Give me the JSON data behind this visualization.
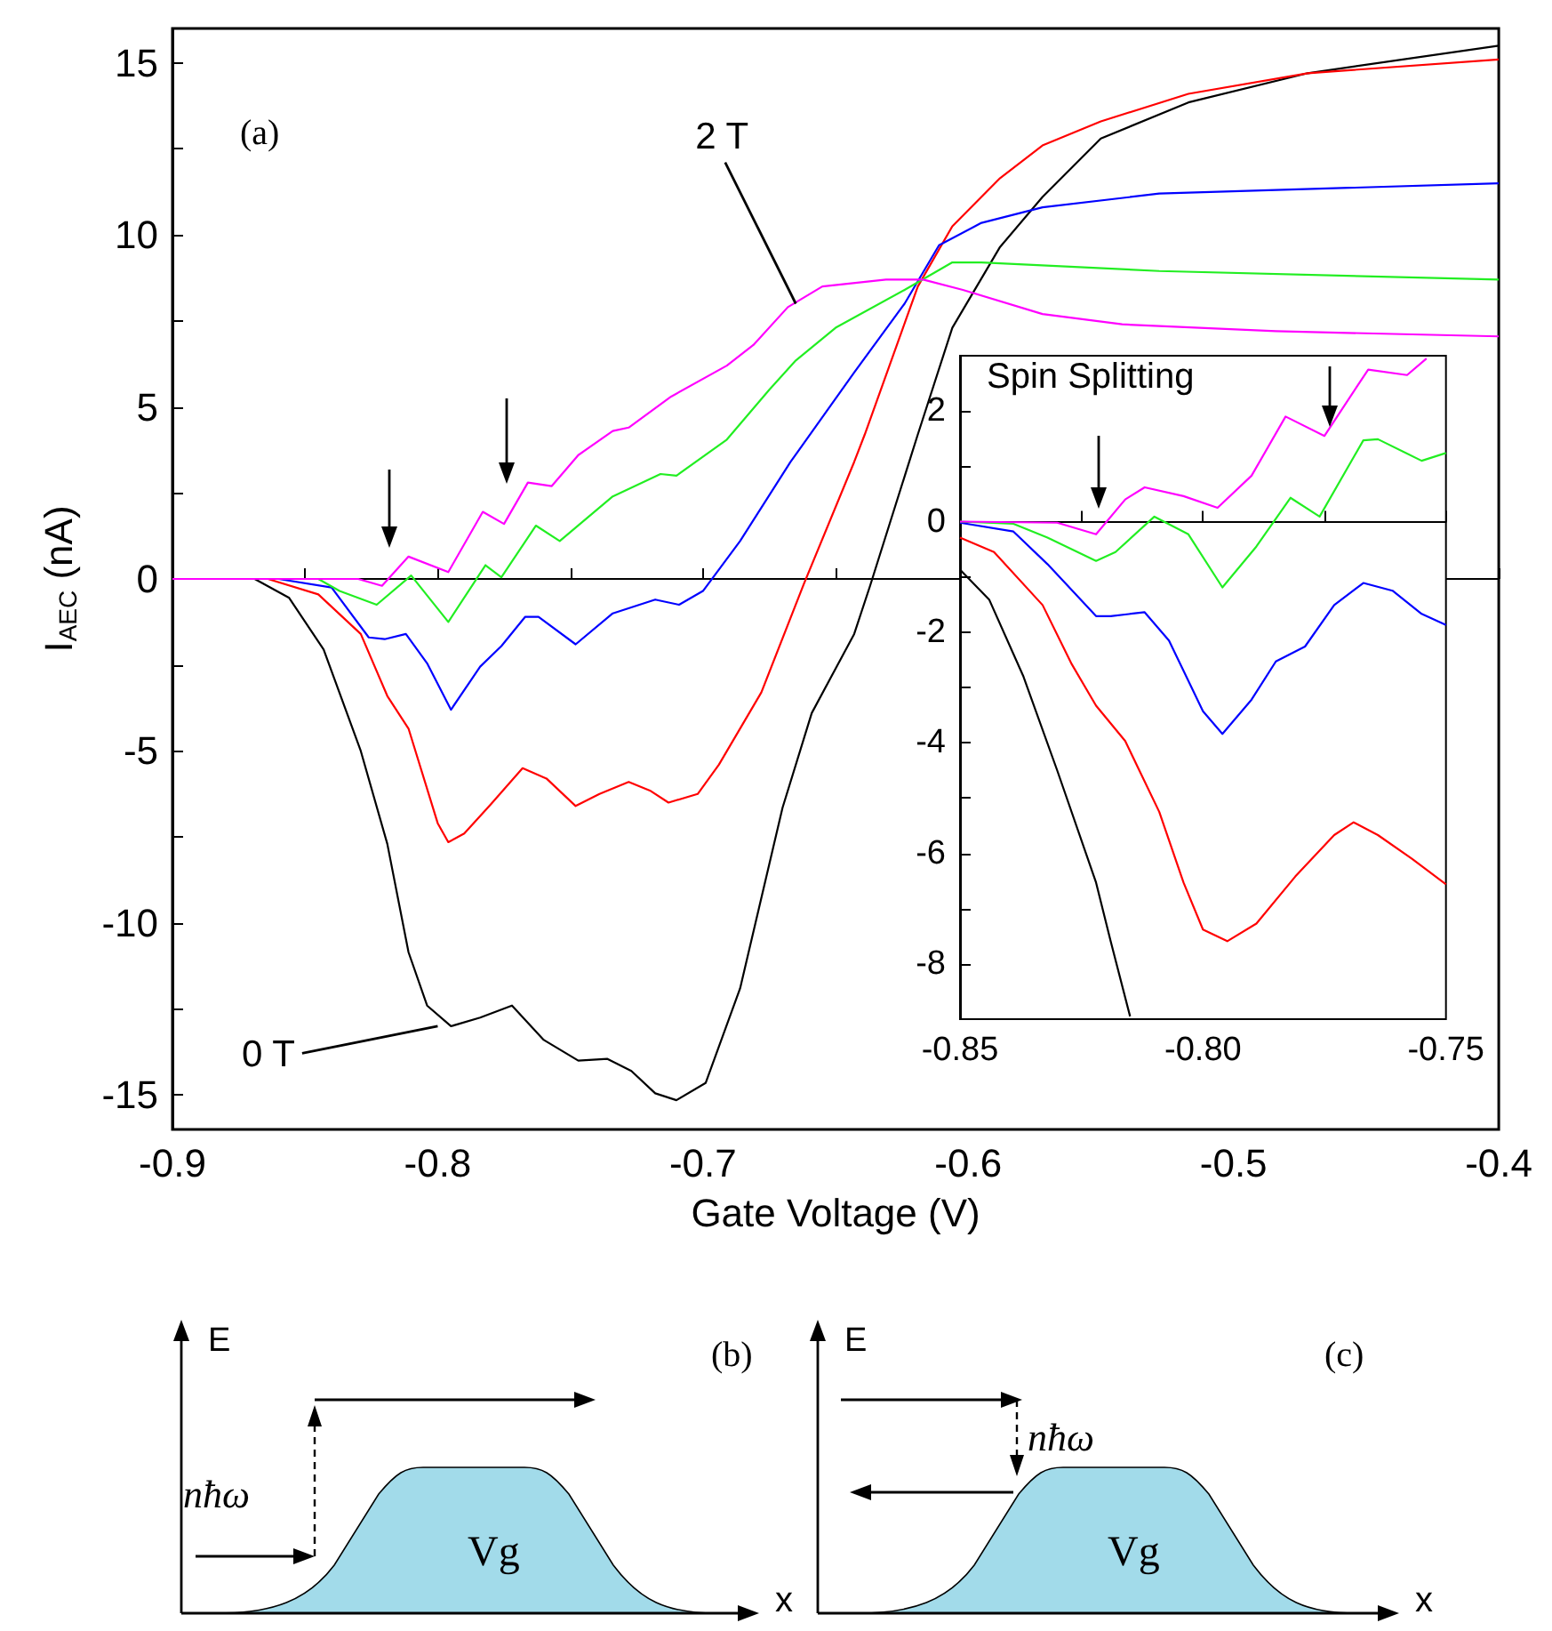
{
  "chart_data": [
    {
      "type": "line",
      "xlabel": "Gate Voltage (V)",
      "ylabel": "I$_{AEC}$ (nA)",
      "xlim": [
        -0.9,
        -0.4
      ],
      "ylim": [
        -16,
        16
      ],
      "xticks": [
        -0.9,
        {
          "value": -0.85,
          "label": null
        },
        -0.8,
        {
          "value": -0.75,
          "label": null
        },
        -0.7,
        {
          "value": -0.65,
          "label": null
        },
        -0.6,
        {
          "value": -0.55,
          "label": null
        },
        -0.5,
        {
          "value": -0.45,
          "label": null
        },
        -0.4
      ],
      "yticks": [
        -15,
        {
          "value": -12.5,
          "label": null
        },
        -10,
        {
          "value": -7.5,
          "label": null
        },
        -5,
        {
          "value": -2.5,
          "label": null
        },
        0,
        {
          "value": 2.5,
          "label": null
        },
        5,
        {
          "value": 7.5,
          "label": null
        },
        10,
        {
          "value": 12.5,
          "label": null
        },
        15
      ],
      "marker": "none",
      "annotations": [
        "(a)",
        {
          "text": "2 T",
          "x": -0.665,
          "y": 8
        },
        {
          "text": "0 T",
          "x": -0.8,
          "y": -13
        }
      ],
      "series": [
        {
          "color": "#000000",
          "x": [
            -0.9,
            -0.869,
            -0.856,
            -0.843,
            -0.829,
            -0.819,
            -0.811,
            -0.804,
            -0.795,
            -0.784,
            -0.772,
            -0.76,
            -0.747,
            -0.736,
            -0.727,
            -0.718,
            -0.71,
            -0.699,
            -0.686,
            -0.67,
            -0.659,
            -0.643,
            -0.637,
            -0.619,
            -0.606,
            -0.588,
            -0.572,
            -0.55,
            -0.517,
            -0.472,
            -0.4
          ],
          "values": [
            0,
            0,
            -0.55,
            -2.05,
            -5.0,
            -7.7,
            -10.85,
            -12.4,
            -13.0,
            -12.75,
            -12.4,
            -13.4,
            -14.0,
            -13.95,
            -14.3,
            -14.95,
            -15.15,
            -14.65,
            -11.9,
            -6.65,
            -3.9,
            -1.6,
            -0.2,
            4.2,
            7.3,
            9.65,
            11.1,
            12.8,
            13.85,
            14.7,
            15.5
          ]
        },
        {
          "color": "#ff0000",
          "x": [
            -0.9,
            -0.864,
            -0.845,
            -0.829,
            -0.819,
            -0.811,
            -0.8,
            -0.796,
            -0.79,
            -0.78,
            -0.768,
            -0.759,
            -0.748,
            -0.739,
            -0.728,
            -0.72,
            -0.713,
            -0.702,
            -0.694,
            -0.678,
            -0.662,
            -0.643,
            -0.639,
            -0.619,
            -0.606,
            -0.588,
            -0.572,
            -0.55,
            -0.517,
            -0.472,
            -0.4
          ],
          "values": [
            0,
            0,
            -0.45,
            -1.6,
            -3.4,
            -4.35,
            -7.1,
            -7.65,
            -7.4,
            -6.55,
            -5.5,
            -5.8,
            -6.6,
            -6.25,
            -5.9,
            -6.15,
            -6.5,
            -6.25,
            -5.4,
            -3.3,
            -0.15,
            3.4,
            4.2,
            8.5,
            10.25,
            11.65,
            12.6,
            13.3,
            14.1,
            14.7,
            15.1
          ]
        },
        {
          "color": "#0000ff",
          "x": [
            -0.9,
            -0.86,
            -0.84,
            -0.826,
            -0.82,
            -0.812,
            -0.804,
            -0.795,
            -0.784,
            -0.776,
            -0.767,
            -0.762,
            -0.748,
            -0.734,
            -0.718,
            -0.709,
            -0.7,
            -0.686,
            -0.667,
            -0.643,
            -0.624,
            -0.611,
            -0.595,
            -0.572,
            -0.528,
            -0.4
          ],
          "values": [
            0,
            0,
            -0.25,
            -1.7,
            -1.75,
            -1.6,
            -2.45,
            -3.8,
            -2.55,
            -1.95,
            -1.1,
            -1.1,
            -1.9,
            -1.0,
            -0.6,
            -0.75,
            -0.35,
            1.1,
            3.4,
            6.0,
            8.0,
            9.7,
            10.35,
            10.8,
            11.2,
            11.5
          ]
        },
        {
          "color": "#22ee22",
          "x": [
            -0.9,
            -0.845,
            -0.837,
            -0.823,
            -0.81,
            -0.796,
            -0.782,
            -0.776,
            -0.763,
            -0.754,
            -0.734,
            -0.716,
            -0.71,
            -0.691,
            -0.675,
            -0.665,
            -0.65,
            -0.624,
            -0.606,
            -0.595,
            -0.528,
            -0.4
          ],
          "values": [
            0,
            0,
            -0.35,
            -0.75,
            0.1,
            -1.25,
            0.4,
            0.05,
            1.55,
            1.1,
            2.4,
            3.05,
            3.0,
            4.05,
            5.5,
            6.35,
            7.3,
            8.4,
            9.2,
            9.2,
            8.95,
            8.7
          ]
        },
        {
          "color": "#ff00ff",
          "x": [
            -0.9,
            -0.83,
            -0.821,
            -0.811,
            -0.796,
            -0.783,
            -0.775,
            -0.766,
            -0.757,
            -0.747,
            -0.734,
            -0.728,
            -0.712,
            -0.691,
            -0.681,
            -0.668,
            -0.655,
            -0.631,
            -0.617,
            -0.602,
            -0.572,
            -0.542,
            -0.484,
            -0.4
          ],
          "values": [
            0,
            0,
            -0.2,
            0.65,
            0.2,
            1.95,
            1.6,
            2.8,
            2.7,
            3.6,
            4.3,
            4.4,
            5.3,
            6.2,
            6.8,
            7.9,
            8.5,
            8.7,
            8.7,
            8.4,
            7.7,
            7.4,
            7.2,
            7.05
          ]
        }
      ]
    },
    {
      "type": "line",
      "xlim": [
        -0.85,
        -0.75
      ],
      "ylim": [
        -9,
        3
      ],
      "xticks": [
        -0.85,
        {
          "value": -0.825,
          "label": null
        },
        {
          "value": -0.8,
          "label": "-0.80"
        },
        {
          "value": -0.775,
          "label": null
        },
        -0.75
      ],
      "yticks": [
        -8,
        {
          "value": -7,
          "label": null
        },
        -6,
        {
          "value": -5,
          "label": null
        },
        -4,
        {
          "value": -3,
          "label": null
        },
        -2,
        {
          "value": -1,
          "label": null
        },
        0,
        {
          "value": 1,
          "label": null
        },
        2
      ],
      "marker": "none",
      "annotations": [
        "Spin Splitting"
      ],
      "series": [
        {
          "color": "#000000",
          "x": [
            -0.85,
            -0.844,
            -0.837,
            -0.83,
            -0.822,
            -0.819,
            -0.815
          ],
          "values": [
            -0.87,
            -1.41,
            -2.79,
            -4.5,
            -6.53,
            -7.59,
            -8.95
          ]
        },
        {
          "color": "#ff0000",
          "x": [
            -0.85,
            -0.843,
            -0.833,
            -0.827,
            -0.822,
            -0.816,
            -0.809,
            -0.804,
            -0.8,
            -0.795,
            -0.789,
            -0.781,
            -0.773,
            -0.769,
            -0.764,
            -0.757,
            -0.75
          ],
          "values": [
            -0.29,
            -0.55,
            -1.51,
            -2.58,
            -3.33,
            -3.97,
            -5.25,
            -6.53,
            -7.38,
            -7.59,
            -7.27,
            -6.42,
            -5.67,
            -5.44,
            -5.67,
            -6.1,
            -6.56
          ]
        },
        {
          "color": "#0000ff",
          "x": [
            -0.85,
            -0.839,
            -0.832,
            -0.822,
            -0.819,
            -0.812,
            -0.807,
            -0.8,
            -0.796,
            -0.79,
            -0.785,
            -0.779,
            -0.773,
            -0.767,
            -0.761,
            -0.755,
            -0.75
          ],
          "values": [
            -0.02,
            -0.18,
            -0.77,
            -1.71,
            -1.71,
            -1.64,
            -2.15,
            -3.43,
            -3.84,
            -3.22,
            -2.53,
            -2.26,
            -1.51,
            -1.11,
            -1.25,
            -1.67,
            -1.87
          ]
        },
        {
          "color": "#22ee22",
          "x": [
            -0.85,
            -0.839,
            -0.832,
            -0.822,
            -0.818,
            -0.81,
            -0.803,
            -0.796,
            -0.789,
            -0.782,
            -0.776,
            -0.767,
            -0.764,
            -0.755,
            -0.75
          ],
          "values": [
            0,
            -0.04,
            -0.29,
            -0.71,
            -0.55,
            0.09,
            -0.23,
            -1.19,
            -0.45,
            0.43,
            0.09,
            1.47,
            1.49,
            1.1,
            1.24
          ]
        },
        {
          "color": "#ff00ff",
          "x": [
            -0.85,
            -0.83,
            -0.822,
            -0.816,
            -0.812,
            -0.804,
            -0.797,
            -0.79,
            -0.783,
            -0.775,
            -0.766,
            -0.758,
            -0.754
          ],
          "values": [
            0,
            -0.02,
            -0.23,
            0.4,
            0.62,
            0.46,
            0.25,
            0.83,
            1.9,
            1.55,
            2.75,
            2.65,
            2.95
          ]
        }
      ]
    },
    {
      "type": "other",
      "annotations": [
        "(b)",
        "E",
        "x",
        "nħω",
        "Vg"
      ]
    },
    {
      "type": "other",
      "annotations": [
        "(c)",
        "E",
        "x",
        "nħω",
        "Vg"
      ]
    }
  ]
}
